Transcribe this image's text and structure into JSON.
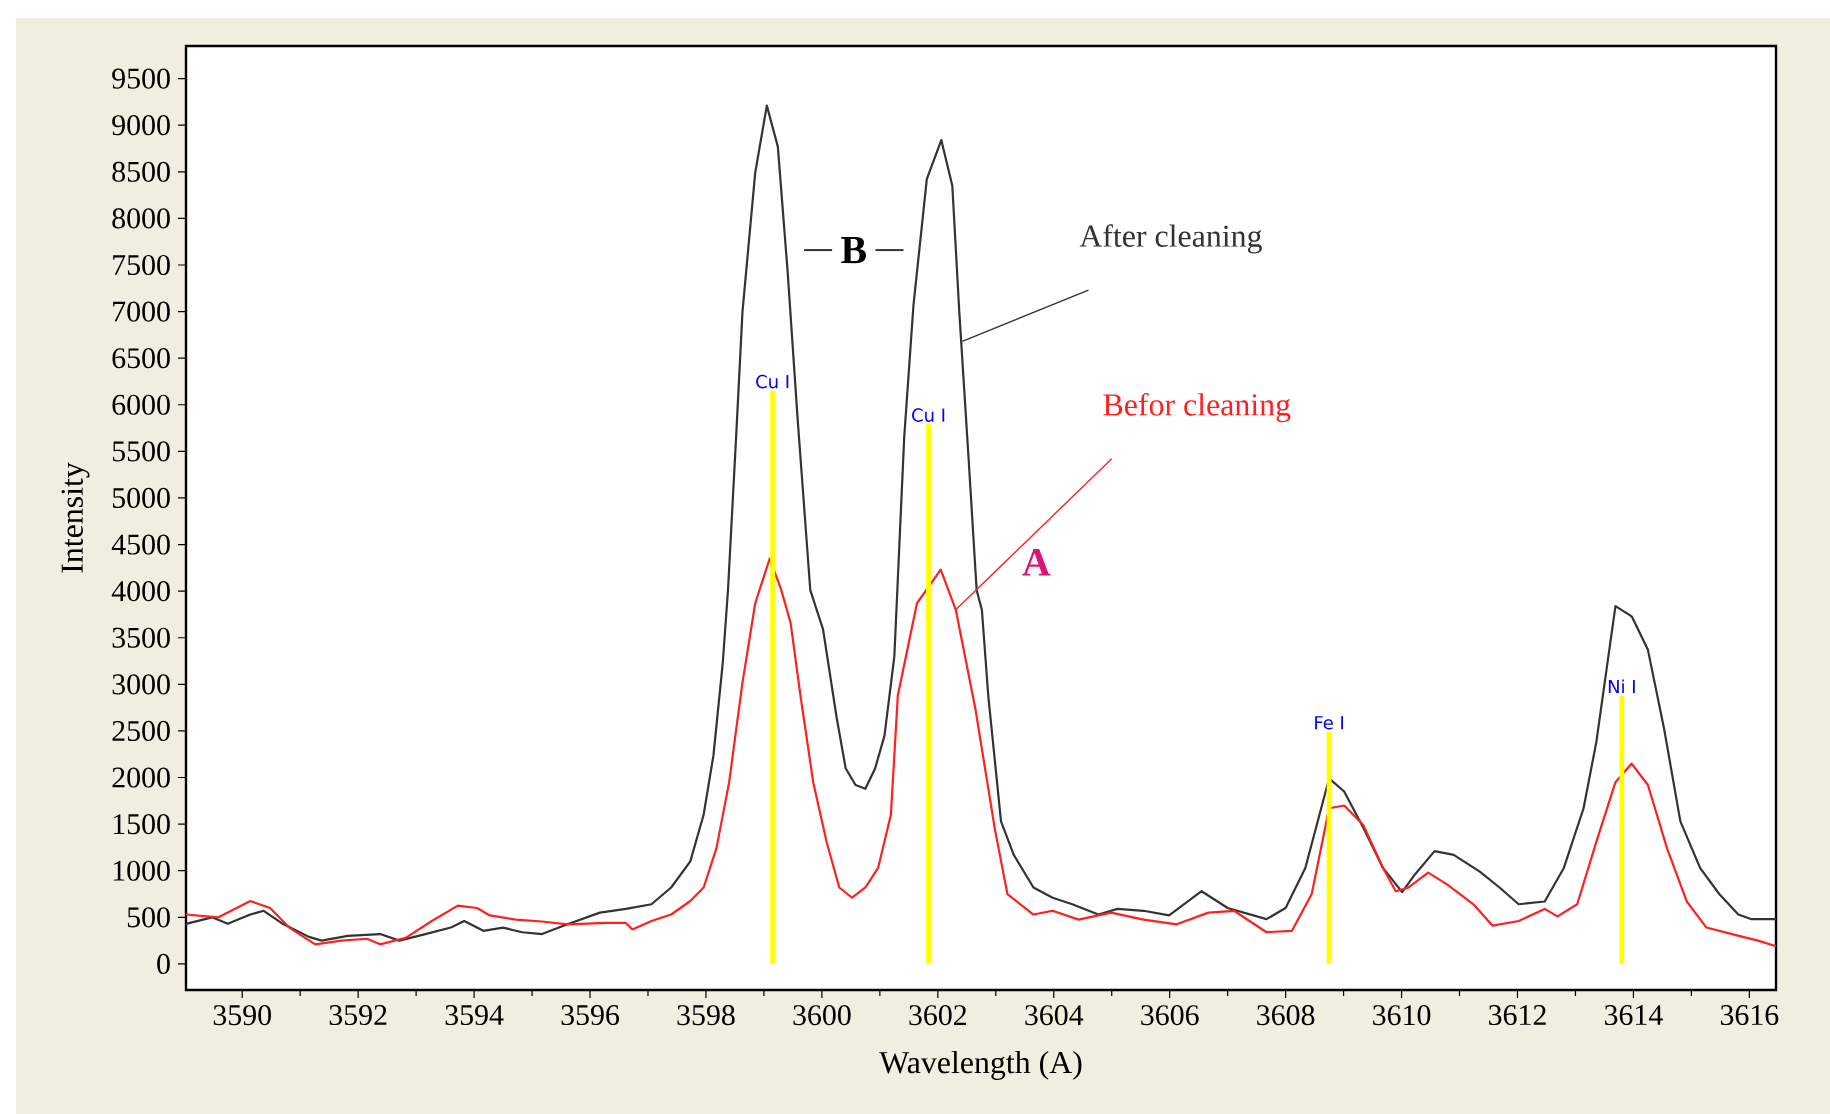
{
  "chart_data": {
    "type": "line",
    "xlabel": "Wavelength (A)",
    "ylabel": "Intensity",
    "xlim": [
      3589.03,
      3616.46
    ],
    "ylim": [
      -280,
      9850
    ],
    "xticks": [
      3590,
      3592,
      3594,
      3596,
      3598,
      3600,
      3602,
      3604,
      3606,
      3608,
      3610,
      3612,
      3614,
      3616
    ],
    "yticks": [
      0,
      500,
      1000,
      1500,
      2000,
      2500,
      3000,
      3500,
      4000,
      4500,
      5000,
      5500,
      6000,
      6500,
      7000,
      7500,
      8000,
      8500,
      9000,
      9500
    ],
    "series": [
      {
        "name": "After cleaning",
        "color": "#333333",
        "x": [
          3589.03,
          3589.48,
          3589.75,
          3590.14,
          3590.37,
          3590.7,
          3591.15,
          3591.37,
          3591.82,
          3592.38,
          3592.71,
          3593.16,
          3593.6,
          3593.83,
          3594.16,
          3594.5,
          3594.83,
          3595.17,
          3595.61,
          3596.17,
          3596.62,
          3597.06,
          3597.4,
          3597.73,
          3597.96,
          3598.13,
          3598.29,
          3598.38,
          3598.52,
          3598.63,
          3598.85,
          3599.05,
          3599.24,
          3599.41,
          3599.58,
          3599.8,
          3600.02,
          3600.25,
          3600.41,
          3600.58,
          3600.75,
          3600.92,
          3601.08,
          3601.25,
          3601.42,
          3601.58,
          3601.81,
          3602.06,
          3602.25,
          3602.37,
          3602.53,
          3602.67,
          3602.76,
          3602.87,
          3603.09,
          3603.31,
          3603.65,
          3603.98,
          3604.32,
          3604.77,
          3605.1,
          3605.55,
          3605.99,
          3606.55,
          3607.0,
          3607.67,
          3608.0,
          3608.34,
          3608.75,
          3609.01,
          3609.34,
          3609.68,
          3610.01,
          3610.23,
          3610.57,
          3610.9,
          3611.35,
          3611.69,
          3612.02,
          3612.47,
          3612.8,
          3613.14,
          3613.36,
          3613.69,
          3613.97,
          3614.25,
          3614.53,
          3614.81,
          3615.15,
          3615.48,
          3615.81,
          3616.04,
          3616.46
        ],
        "values": [
          430,
          500,
          430,
          530,
          570,
          430,
          290,
          250,
          300,
          320,
          250,
          320,
          390,
          460,
          355,
          390,
          340,
          320,
          425,
          550,
          590,
          640,
          820,
          1100,
          1600,
          2240,
          3230,
          4010,
          5650,
          7000,
          8490,
          9210,
          8770,
          7420,
          5860,
          4010,
          3590,
          2660,
          2100,
          1920,
          1880,
          2100,
          2450,
          3300,
          5650,
          7070,
          8420,
          8840,
          8350,
          7000,
          5430,
          4010,
          3800,
          2880,
          1530,
          1170,
          820,
          710,
          640,
          530,
          590,
          570,
          520,
          780,
          600,
          480,
          600,
          1030,
          1990,
          1850,
          1460,
          1030,
          770,
          960,
          1210,
          1170,
          990,
          820,
          640,
          670,
          1030,
          1670,
          2380,
          3840,
          3730,
          3370,
          2520,
          1530,
          1030,
          750,
          530,
          480,
          480
        ]
      },
      {
        "name": "Befor cleaning",
        "color": "#ff2020",
        "x": [
          3589.03,
          3589.59,
          3590.14,
          3590.48,
          3590.81,
          3591.26,
          3591.71,
          3592.15,
          3592.38,
          3592.82,
          3593.27,
          3593.72,
          3594.05,
          3594.27,
          3594.72,
          3595.17,
          3595.61,
          3596.28,
          3596.62,
          3596.73,
          3597.06,
          3597.4,
          3597.73,
          3597.96,
          3598.18,
          3598.4,
          3598.63,
          3598.85,
          3599.1,
          3599.3,
          3599.46,
          3599.63,
          3599.85,
          3600.08,
          3600.3,
          3600.52,
          3600.75,
          3600.97,
          3601.19,
          3601.31,
          3601.64,
          3602.05,
          3602.31,
          3602.65,
          3602.98,
          3603.2,
          3603.65,
          3603.98,
          3604.43,
          3604.99,
          3605.55,
          3606.12,
          3606.67,
          3607.11,
          3607.67,
          3608.11,
          3608.45,
          3608.75,
          3609.01,
          3609.34,
          3609.68,
          3609.9,
          3610.12,
          3610.46,
          3610.79,
          3611.24,
          3611.57,
          3612.02,
          3612.47,
          3612.69,
          3613.03,
          3613.36,
          3613.69,
          3613.97,
          3614.25,
          3614.58,
          3614.92,
          3615.26,
          3615.7,
          3616.15,
          3616.46
        ],
        "values": [
          530,
          500,
          675,
          600,
          390,
          210,
          250,
          270,
          210,
          280,
          460,
          625,
          600,
          520,
          475,
          455,
          425,
          440,
          440,
          370,
          460,
          530,
          675,
          820,
          1240,
          1950,
          3020,
          3870,
          4350,
          4010,
          3660,
          2880,
          1950,
          1310,
          820,
          710,
          820,
          1030,
          1600,
          2880,
          3870,
          4230,
          3800,
          2730,
          1460,
          750,
          530,
          570,
          475,
          550,
          475,
          425,
          550,
          570,
          340,
          355,
          750,
          1670,
          1700,
          1490,
          1030,
          780,
          820,
          980,
          850,
          640,
          410,
          460,
          590,
          510,
          640,
          1310,
          1950,
          2150,
          1920,
          1240,
          670,
          390,
          320,
          250,
          190
        ]
      },
      {
        "type": "bar",
        "color": "#ffff00",
        "x": [
          3599.15,
          3601.84,
          3608.75,
          3613.8
        ],
        "values": [
          6150,
          5790,
          2490,
          2880
        ]
      }
    ],
    "annotations": [
      {
        "text": "Cu I",
        "x": 3599.15,
        "y": 6150
      },
      {
        "text": "Cu I",
        "x": 3601.84,
        "y": 5790
      },
      {
        "text": "Fe I",
        "x": 3608.75,
        "y": 2490
      },
      {
        "text": "Ni I",
        "x": 3613.8,
        "y": 2880
      },
      "B",
      "A"
    ]
  }
}
